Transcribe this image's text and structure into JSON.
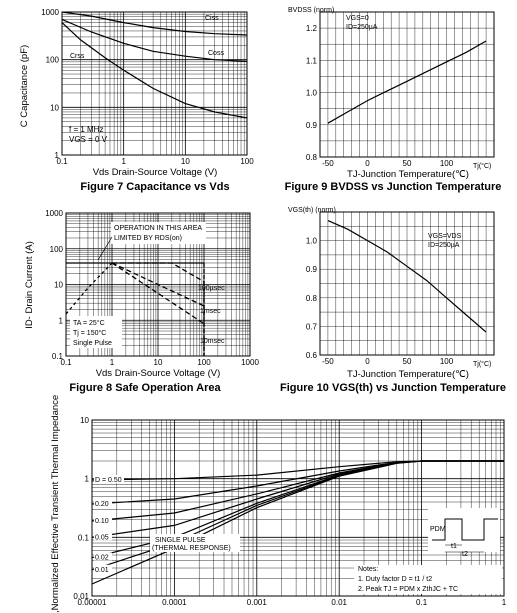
{
  "chart_data": [
    {
      "id": "fig7",
      "type": "line",
      "caption": "Figure 7 Capacitance vs Vds",
      "xlabel": "Vds Drain-Source Voltage (V)",
      "ylabel": "C Capacitance (pF)",
      "x_scale": "log",
      "y_scale": "log",
      "xlim": [
        0.1,
        100
      ],
      "ylim": [
        1,
        1000
      ],
      "xticks": [
        "0.1",
        "1",
        "10",
        "100"
      ],
      "yticks": [
        "1",
        "10",
        "100",
        "1000"
      ],
      "grid": true,
      "notes": [
        "f = 1 MHz",
        "VGS = 0 V"
      ],
      "series": [
        {
          "name": "Ciss",
          "x": [
            0.1,
            0.3,
            1,
            3,
            10,
            30,
            100
          ],
          "y": [
            1000,
            820,
            600,
            470,
            390,
            350,
            330
          ]
        },
        {
          "name": "Coss",
          "x": [
            0.1,
            0.3,
            1,
            3,
            10,
            30,
            100
          ],
          "y": [
            700,
            380,
            220,
            150,
            118,
            100,
            92
          ]
        },
        {
          "name": "Crss",
          "x": [
            0.1,
            0.2,
            0.5,
            1,
            3,
            10,
            30,
            100
          ],
          "y": [
            600,
            260,
            110,
            60,
            25,
            12,
            8,
            6
          ]
        }
      ]
    },
    {
      "id": "fig9",
      "type": "line",
      "caption": "Figure 9 BVDSS vs Junction Temperature",
      "xlabel": "TJ-Junction Temperature(℃)",
      "ylabel": "BVDSS (norm)",
      "xlim": [
        -60,
        160
      ],
      "ylim": [
        0.8,
        1.25
      ],
      "xticks": [
        "-50",
        "0",
        "50",
        "100"
      ],
      "yticks": [
        "0.8",
        "0.9",
        "1.0",
        "1.1",
        "1.2"
      ],
      "x_unit_label": "Tj(°C)",
      "grid": true,
      "conditions": [
        "VGS=0",
        "ID=250µA"
      ],
      "series": [
        {
          "x": [
            -50,
            -25,
            0,
            25,
            50,
            75,
            100,
            125,
            150
          ],
          "y": [
            0.905,
            0.94,
            0.975,
            1.005,
            1.035,
            1.065,
            1.095,
            1.125,
            1.16
          ]
        }
      ]
    },
    {
      "id": "fig8",
      "type": "line",
      "caption": "Figure 8 Safe Operation Area",
      "xlabel": "Vds Drain-Source Voltage (V)",
      "ylabel": "ID- Drain Current (A)",
      "x_scale": "log",
      "y_scale": "log",
      "xlim": [
        0.1,
        1000
      ],
      "ylim": [
        0.1,
        1000
      ],
      "xticks": [
        "0.1",
        "1",
        "10",
        "100",
        "1000"
      ],
      "yticks": [
        "0.1",
        "1",
        "10",
        "100",
        "1000"
      ],
      "grid": true,
      "annotations": [
        "OPERATION IN THIS AREA",
        "LIMITED BY RDS(on)",
        "100µsec",
        "1msec",
        "10msec"
      ],
      "notes": [
        "TA = 25°C",
        "Tj = 150°C",
        "Single Pulse"
      ],
      "series": [
        {
          "name": "RDS(on) limit",
          "x": [
            0.1,
            0.3,
            1
          ],
          "y": [
            1.5,
            8,
            40
          ]
        },
        {
          "name": "100µsec",
          "x": [
            1,
            20,
            100,
            100
          ],
          "y": [
            40,
            40,
            12,
            0.1
          ]
        },
        {
          "name": "1msec",
          "x": [
            1,
            100
          ],
          "y": [
            40,
            2.5
          ]
        },
        {
          "name": "10msec",
          "x": [
            1,
            100
          ],
          "y": [
            40,
            0.8
          ]
        }
      ]
    },
    {
      "id": "fig10",
      "type": "line",
      "caption": "Figure 10 VGS(th) vs Junction Temperature",
      "xlabel": "TJ-Junction Temperature(℃)",
      "ylabel": "VGS(th) (norm)",
      "xlim": [
        -60,
        160
      ],
      "ylim": [
        0.6,
        1.1
      ],
      "xticks": [
        "-50",
        "0",
        "50",
        "100"
      ],
      "yticks": [
        "0.6",
        "0.7",
        "0.8",
        "0.9",
        "1.0"
      ],
      "x_unit_label": "Tj(°C)",
      "grid": true,
      "conditions": [
        "VGS=VDS",
        "ID=250µA"
      ],
      "series": [
        {
          "x": [
            -50,
            -25,
            0,
            25,
            50,
            75,
            100,
            125,
            150
          ],
          "y": [
            1.07,
            1.04,
            1.0,
            0.96,
            0.91,
            0.86,
            0.8,
            0.74,
            0.68
          ]
        }
      ]
    },
    {
      "id": "fig11",
      "type": "line",
      "xlabel": "",
      "ylabel": "r(t),Normalized Effective Transient Thermal Impedance",
      "x_scale": "log",
      "y_scale": "log",
      "xlim": [
        1e-05,
        1
      ],
      "ylim": [
        0.01,
        10
      ],
      "xticks": [
        "0.00001",
        "0.0001",
        "0.001",
        "0.01",
        "0.1",
        "1"
      ],
      "yticks": [
        "0.01",
        "0.1",
        "1",
        "10"
      ],
      "grid": true,
      "annotations": [
        "D = 0.50",
        "0.20",
        "0.10",
        "0.05",
        "0.02",
        "0.01",
        "SINGLE PULSE",
        "(THERMAL RESPONSE)"
      ],
      "notes_title": "Notes:",
      "notes": [
        "1. Duty factor D = t1 / t2",
        "2. Peak TJ = PDM x ZthJC + TC"
      ],
      "inset_labels": [
        "PDM",
        "t1",
        "t2"
      ],
      "series": [
        {
          "name": "D = 0.50",
          "x": [
            1e-05,
            0.0001,
            0.001,
            0.01,
            0.05,
            0.1,
            1
          ],
          "y": [
            0.95,
            1.0,
            1.15,
            1.6,
            1.95,
            2.0,
            2.0
          ]
        },
        {
          "name": "0.20",
          "x": [
            1e-05,
            0.0001,
            0.001,
            0.01,
            0.05,
            0.1,
            1
          ],
          "y": [
            0.37,
            0.45,
            0.75,
            1.35,
            1.9,
            2.0,
            2.0
          ]
        },
        {
          "name": "0.10",
          "x": [
            1e-05,
            0.0001,
            0.001,
            0.01,
            0.05,
            0.1,
            1
          ],
          "y": [
            0.19,
            0.26,
            0.55,
            1.25,
            1.88,
            2.0,
            2.0
          ]
        },
        {
          "name": "0.05",
          "x": [
            1e-05,
            0.0001,
            0.001,
            0.01,
            0.05,
            0.1,
            1
          ],
          "y": [
            0.1,
            0.16,
            0.45,
            1.2,
            1.86,
            2.0,
            2.0
          ]
        },
        {
          "name": "0.02",
          "x": [
            1e-05,
            0.0001,
            0.001,
            0.01,
            0.05,
            0.1,
            1
          ],
          "y": [
            0.045,
            0.1,
            0.38,
            1.15,
            1.85,
            2.0,
            2.0
          ]
        },
        {
          "name": "0.01",
          "x": [
            1e-05,
            0.0001,
            0.001,
            0.01,
            0.05,
            0.1,
            1
          ],
          "y": [
            0.028,
            0.08,
            0.35,
            1.12,
            1.84,
            2.0,
            2.0
          ]
        },
        {
          "name": "SINGLE PULSE",
          "x": [
            1e-05,
            0.0001,
            0.001,
            0.01,
            0.05,
            0.1,
            1
          ],
          "y": [
            0.016,
            0.065,
            0.32,
            1.1,
            1.83,
            2.0,
            2.0
          ]
        }
      ]
    }
  ]
}
